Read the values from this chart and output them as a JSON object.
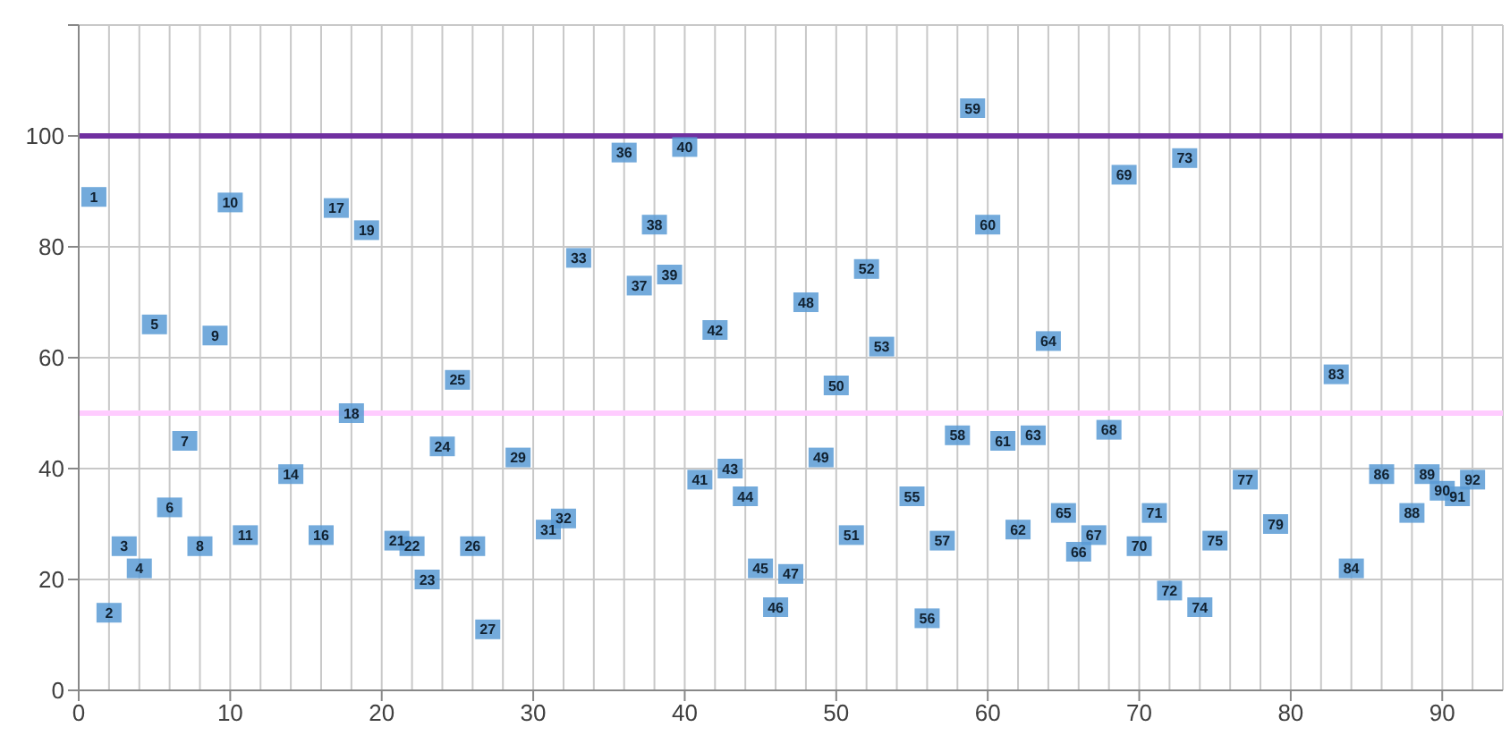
{
  "chart_data": {
    "type": "scatter",
    "x": [
      1,
      2,
      3,
      4,
      5,
      6,
      7,
      8,
      9,
      10,
      11,
      14,
      16,
      17,
      18,
      19,
      21,
      22,
      23,
      24,
      25,
      26,
      27,
      29,
      31,
      32,
      33,
      36,
      37,
      38,
      39,
      40,
      41,
      42,
      43,
      44,
      45,
      46,
      47,
      48,
      49,
      50,
      51,
      52,
      53,
      55,
      56,
      57,
      58,
      59,
      60,
      61,
      62,
      63,
      64,
      65,
      66,
      67,
      68,
      69,
      70,
      71,
      72,
      73,
      74,
      75,
      77,
      79,
      83,
      84,
      86,
      88,
      89,
      90,
      91,
      92
    ],
    "series": [
      {
        "color": "#5b9bd5",
        "values": [
          89,
          14,
          26,
          22,
          66,
          33,
          45,
          26,
          64,
          88,
          28,
          39,
          28,
          87,
          50,
          83,
          27,
          26,
          20,
          44,
          56,
          26,
          11,
          42,
          29,
          31,
          78,
          97,
          73,
          84,
          75,
          98,
          38,
          65,
          40,
          35,
          22,
          15,
          21,
          70,
          42,
          55,
          28,
          76,
          62,
          35,
          13,
          27,
          46,
          105,
          84,
          45,
          29,
          46,
          63,
          32,
          25,
          28,
          47,
          93,
          26,
          32,
          18,
          96,
          15,
          27,
          38,
          30,
          57,
          22,
          39,
          32,
          39,
          36,
          35,
          38
        ],
        "name": null
      }
    ],
    "annotations": [
      {
        "text": "1",
        "x": 1,
        "y": 89
      },
      {
        "text": "2",
        "x": 2,
        "y": 14
      },
      {
        "text": "3",
        "x": 3,
        "y": 26
      },
      {
        "text": "4",
        "x": 4,
        "y": 22
      },
      {
        "text": "5",
        "x": 5,
        "y": 66
      },
      {
        "text": "6",
        "x": 6,
        "y": 33
      },
      {
        "text": "7",
        "x": 7,
        "y": 45
      },
      {
        "text": "8",
        "x": 8,
        "y": 26
      },
      {
        "text": "9",
        "x": 9,
        "y": 64
      },
      {
        "text": "10",
        "x": 10,
        "y": 88
      },
      {
        "text": "11",
        "x": 11,
        "y": 28
      },
      {
        "text": "14",
        "x": 14,
        "y": 39
      },
      {
        "text": "16",
        "x": 16,
        "y": 28
      },
      {
        "text": "17",
        "x": 17,
        "y": 87
      },
      {
        "text": "18",
        "x": 18,
        "y": 50
      },
      {
        "text": "19",
        "x": 19,
        "y": 83
      },
      {
        "text": "21",
        "x": 21,
        "y": 27
      },
      {
        "text": "22",
        "x": 22,
        "y": 26
      },
      {
        "text": "23",
        "x": 23,
        "y": 20
      },
      {
        "text": "24",
        "x": 24,
        "y": 44
      },
      {
        "text": "25",
        "x": 25,
        "y": 56
      },
      {
        "text": "26",
        "x": 26,
        "y": 26
      },
      {
        "text": "27",
        "x": 27,
        "y": 11
      },
      {
        "text": "29",
        "x": 29,
        "y": 42
      },
      {
        "text": "31",
        "x": 31,
        "y": 29
      },
      {
        "text": "32",
        "x": 32,
        "y": 31
      },
      {
        "text": "33",
        "x": 33,
        "y": 78
      },
      {
        "text": "36",
        "x": 36,
        "y": 97
      },
      {
        "text": "37",
        "x": 37,
        "y": 73
      },
      {
        "text": "38",
        "x": 38,
        "y": 84
      },
      {
        "text": "39",
        "x": 39,
        "y": 75
      },
      {
        "text": "40",
        "x": 40,
        "y": 98
      },
      {
        "text": "41",
        "x": 41,
        "y": 38
      },
      {
        "text": "42",
        "x": 42,
        "y": 65
      },
      {
        "text": "43",
        "x": 43,
        "y": 40
      },
      {
        "text": "44",
        "x": 44,
        "y": 35
      },
      {
        "text": "45",
        "x": 45,
        "y": 22
      },
      {
        "text": "46",
        "x": 46,
        "y": 15
      },
      {
        "text": "47",
        "x": 47,
        "y": 21
      },
      {
        "text": "48",
        "x": 48,
        "y": 70
      },
      {
        "text": "49",
        "x": 49,
        "y": 42
      },
      {
        "text": "50",
        "x": 50,
        "y": 55
      },
      {
        "text": "51",
        "x": 51,
        "y": 28
      },
      {
        "text": "52",
        "x": 52,
        "y": 76
      },
      {
        "text": "53",
        "x": 53,
        "y": 62
      },
      {
        "text": "55",
        "x": 55,
        "y": 35
      },
      {
        "text": "56",
        "x": 56,
        "y": 13
      },
      {
        "text": "57",
        "x": 57,
        "y": 27
      },
      {
        "text": "58",
        "x": 58,
        "y": 46
      },
      {
        "text": "59",
        "x": 59,
        "y": 105
      },
      {
        "text": "60",
        "x": 60,
        "y": 84
      },
      {
        "text": "61",
        "x": 61,
        "y": 45
      },
      {
        "text": "62",
        "x": 62,
        "y": 29
      },
      {
        "text": "63",
        "x": 63,
        "y": 46
      },
      {
        "text": "64",
        "x": 64,
        "y": 63
      },
      {
        "text": "65",
        "x": 65,
        "y": 32
      },
      {
        "text": "66",
        "x": 66,
        "y": 25
      },
      {
        "text": "67",
        "x": 67,
        "y": 28
      },
      {
        "text": "68",
        "x": 68,
        "y": 47
      },
      {
        "text": "69",
        "x": 69,
        "y": 93
      },
      {
        "text": "70",
        "x": 70,
        "y": 26
      },
      {
        "text": "71",
        "x": 71,
        "y": 32
      },
      {
        "text": "72",
        "x": 72,
        "y": 18
      },
      {
        "text": "73",
        "x": 73,
        "y": 96
      },
      {
        "text": "74",
        "x": 74,
        "y": 15
      },
      {
        "text": "75",
        "x": 75,
        "y": 27
      },
      {
        "text": "77",
        "x": 77,
        "y": 38
      },
      {
        "text": "79",
        "x": 79,
        "y": 30
      },
      {
        "text": "83",
        "x": 83,
        "y": 57
      },
      {
        "text": "84",
        "x": 84,
        "y": 22
      },
      {
        "text": "86",
        "x": 86,
        "y": 39
      },
      {
        "text": "88",
        "x": 88,
        "y": 32
      },
      {
        "text": "89",
        "x": 89,
        "y": 39
      },
      {
        "text": "90",
        "x": 90,
        "y": 36
      },
      {
        "text": "91",
        "x": 91,
        "y": 35
      },
      {
        "text": "92",
        "x": 92,
        "y": 38
      }
    ],
    "xlim": [
      0,
      94
    ],
    "xticks": [
      0,
      10,
      20,
      30,
      40,
      50,
      60,
      70,
      80,
      90
    ],
    "ylim": [
      0,
      120
    ],
    "yticks": [
      0,
      20,
      40,
      60,
      80,
      100,
      {
        "value": 120,
        "label": null
      }
    ],
    "grid": true,
    "marker": "square",
    "ref_lines": [
      {
        "axis": "y",
        "value": 100,
        "label": null,
        "color": "#7030a0"
      },
      {
        "axis": "y",
        "value": 50,
        "label": null,
        "color": "#ffccff"
      }
    ]
  }
}
